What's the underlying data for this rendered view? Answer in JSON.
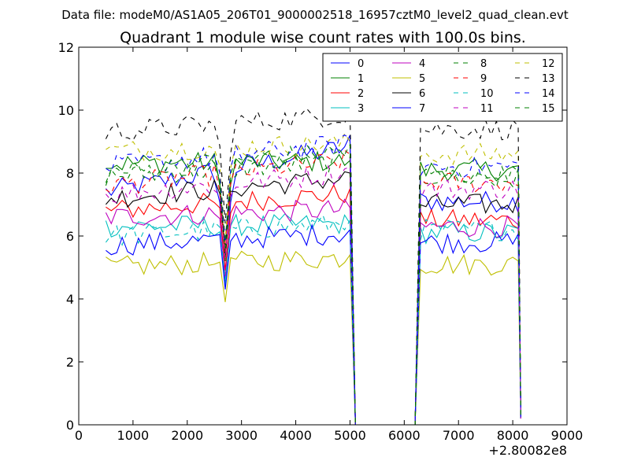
{
  "suptitle": "Data file: modeM0/AS1A05_206T01_9000002518_16957cztM0_level2_quad_clean.evt",
  "chart_data": {
    "type": "line",
    "title": "Quadrant 1 module wise count rates with 100.0s bins.",
    "xlabel": "",
    "ylabel": "",
    "x_offset_label": "+2.80082e8",
    "xlim": [
      0,
      9000
    ],
    "ylim": [
      0,
      12
    ],
    "xticks": [
      0,
      1000,
      2000,
      3000,
      4000,
      5000,
      6000,
      7000,
      8000,
      9000
    ],
    "xtick_labels": [
      "0",
      "1000",
      "2000",
      "3000",
      "4000",
      "5000",
      "6000",
      "7000",
      "8000",
      "9000"
    ],
    "yticks": [
      0,
      2,
      4,
      6,
      8,
      10,
      12
    ],
    "ytick_labels": [
      "0",
      "2",
      "4",
      "6",
      "8",
      "10",
      "12"
    ],
    "legend_position": "top-right",
    "x_start": 500,
    "x_step": 100,
    "dip_at": 2700,
    "gap": {
      "end_x": 5000,
      "zero_from": 5100,
      "zero_to": 6200,
      "resume_x": 6300,
      "drop_x": 8100,
      "last_x": 8150,
      "last_value": 0.2
    },
    "series": [
      {
        "name": "0",
        "color": "#0000ff",
        "style": "solid",
        "base1": 7.4,
        "base2": 7.1,
        "dip": 4.5,
        "end": 9.2
      },
      {
        "name": "1",
        "color": "#008000",
        "style": "solid",
        "base1": 8.3,
        "base2": 8.1,
        "dip": 5.2,
        "end": 8.4
      },
      {
        "name": "2",
        "color": "#ff0000",
        "style": "solid",
        "base1": 6.8,
        "base2": 6.5,
        "dip": 4.9,
        "end": 7.5
      },
      {
        "name": "3",
        "color": "#00bfbf",
        "style": "solid",
        "base1": 6.3,
        "base2": 6.1,
        "dip": 4.4,
        "end": 6.4
      },
      {
        "name": "4",
        "color": "#bf00bf",
        "style": "solid",
        "base1": 6.6,
        "base2": 6.3,
        "dip": 4.7,
        "end": 6.9
      },
      {
        "name": "5",
        "color": "#bfbf00",
        "style": "solid",
        "base1": 5.0,
        "base2": 5.1,
        "dip": 3.9,
        "end": 5.4
      },
      {
        "name": "6",
        "color": "#000000",
        "style": "solid",
        "base1": 7.2,
        "base2": 7.0,
        "dip": 5.4,
        "end": 8.0
      },
      {
        "name": "7",
        "color": "#0000ff",
        "style": "solid",
        "base1": 5.7,
        "base2": 5.8,
        "dip": 4.3,
        "end": 6.2
      },
      {
        "name": "8",
        "color": "#008000",
        "style": "dashed",
        "base1": 7.9,
        "base2": 7.9,
        "dip": 5.6,
        "end": 8.5
      },
      {
        "name": "9",
        "color": "#ff0000",
        "style": "dashed",
        "base1": 7.6,
        "base2": 7.7,
        "dip": 5.5,
        "end": 8.6
      },
      {
        "name": "10",
        "color": "#00bfbf",
        "style": "dashed",
        "base1": 6.0,
        "base2": 6.2,
        "dip": 4.6,
        "end": 6.5
      },
      {
        "name": "11",
        "color": "#bf00bf",
        "style": "dashed",
        "base1": 7.3,
        "base2": 7.5,
        "dip": 5.3,
        "end": 8.2
      },
      {
        "name": "12",
        "color": "#bfbf00",
        "style": "dashed",
        "base1": 8.7,
        "base2": 8.6,
        "dip": 5.9,
        "end": 9.0
      },
      {
        "name": "13",
        "color": "#000000",
        "style": "dashed",
        "base1": 9.3,
        "base2": 9.4,
        "dip": 6.4,
        "end": 10.0
      },
      {
        "name": "14",
        "color": "#0000ff",
        "style": "dashed",
        "base1": 8.2,
        "base2": 8.2,
        "dip": 5.8,
        "end": 9.1
      },
      {
        "name": "15",
        "color": "#008000",
        "style": "dashed",
        "base1": 8.0,
        "base2": 7.9,
        "dip": 5.7,
        "end": 8.9
      }
    ]
  }
}
